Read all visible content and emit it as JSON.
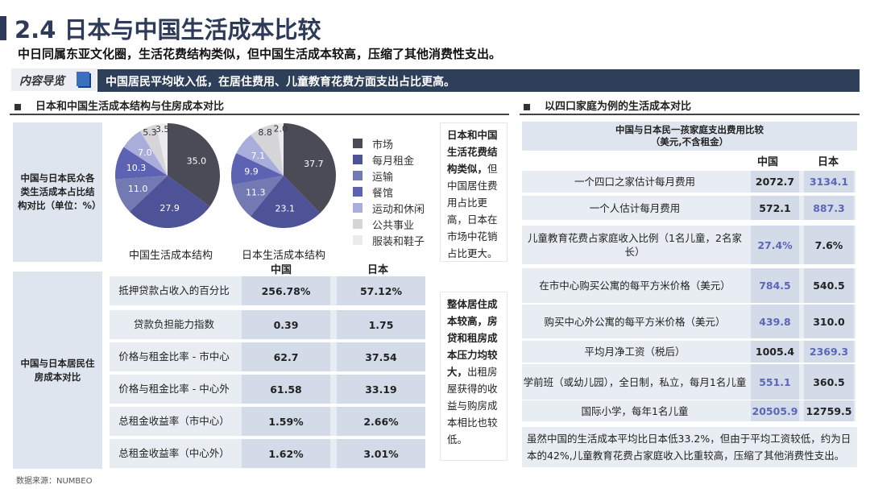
{
  "header": {
    "title": "2.4 日本与中国生活成本比较",
    "subtitle": "中日同属东亚文化圈，生活花费结构类似，但中国生活成本较高，压缩了其他消费性支出。",
    "guide_label": "内容导览",
    "banner": "中国居民平均收入低，在居住费用、儿童教育花费方面支出占比更高。"
  },
  "left": {
    "section_title": "日本和中国生活成本结构与住房成本对比",
    "box1": "中国与日本民众各类生活成本占比结构对比（单位：%）",
    "box2": "中国与日本居民住房成本对比",
    "col_china": "中国",
    "col_japan": "日本",
    "rows": [
      {
        "label": "抵押贷款占收入的百分比",
        "china": "256.78%",
        "japan": "57.12%"
      },
      {
        "label": "贷款负担能力指数",
        "china": "0.39",
        "japan": "1.75"
      },
      {
        "label": "价格与租金比率 - 市中心",
        "china": "62.7",
        "japan": "37.54"
      },
      {
        "label": "价格与租金比率 - 中心外",
        "china": "61.58",
        "japan": "33.19"
      },
      {
        "label": "总租金收益率（市中心）",
        "china": "1.59%",
        "japan": "2.66%"
      },
      {
        "label": "总租金收益率（中心外）",
        "china": "1.62%",
        "japan": "3.01%"
      }
    ],
    "note1_bold": "日本和中国生活花费结构类似，",
    "note1_rest": "但中国居住费用占比更高，日本在市场中花销占比更大。",
    "note2_bold": "整体居住成本较高，房贷和租房成本压力均较大，",
    "note2_rest": "出租房屋获得的收益与购房成本相比也较低。"
  },
  "chart_data": [
    {
      "type": "pie",
      "title": "中国生活成本结构",
      "categories": [
        "市场",
        "每月租金",
        "运输",
        "餐馆",
        "运动和休闲",
        "公共事业",
        "服装和鞋子"
      ],
      "values": [
        35.0,
        27.9,
        11.0,
        10.3,
        7.0,
        5.3,
        3.5
      ]
    },
    {
      "type": "pie",
      "title": "日本生活成本结构",
      "categories": [
        "市场",
        "每月租金",
        "运输",
        "餐馆",
        "运动和休闲",
        "公共事业",
        "服装和鞋子"
      ],
      "values": [
        37.7,
        23.1,
        11.3,
        9.9,
        7.1,
        8.8,
        2.0
      ]
    }
  ],
  "legend": [
    "市场",
    "每月租金",
    "运输",
    "餐馆",
    "运动和休闲",
    "公共事业",
    "服装和鞋子"
  ],
  "colors": [
    "#4a4b57",
    "#4e5398",
    "#7379b2",
    "#5d62b2",
    "#a9addb",
    "#d6d6d9",
    "#ebebee"
  ],
  "right": {
    "section_title": "以四口家庭为例的生活成本对比",
    "table_title": "中国与日本民一孩家庭支出费用比较",
    "table_subtitle": "（美元,不含租金）",
    "col_china": "中国",
    "col_japan": "日本",
    "rows": [
      {
        "label": "一个四口之家估计每月费用",
        "china": "2072.7",
        "japan": "3134.1",
        "higher": "japan"
      },
      {
        "label": "一个人估计每月费用",
        "china": "572.1",
        "japan": "887.3",
        "higher": "japan"
      },
      {
        "label": "儿童教育花费占家庭收入比例（1名儿童，2名家长）",
        "china": "27.4%",
        "japan": "7.6%",
        "higher": "china"
      },
      {
        "label": "在市中心购买公寓的每平方米价格（美元）",
        "china": "784.5",
        "japan": "540.5",
        "higher": "china"
      },
      {
        "label": "购买中心外公寓的每平方米价格（美元）",
        "china": "439.8",
        "japan": "310.0",
        "higher": "china"
      },
      {
        "label": "平均月净工资（税后）",
        "china": "1005.4",
        "japan": "2369.3",
        "higher": "japan"
      },
      {
        "label": "学前班（或幼儿园），全日制，私立，每月1名儿童",
        "china": "551.1",
        "japan": "360.5",
        "higher": "china"
      },
      {
        "label": "国际小学，每年1名儿童",
        "china": "20505.9",
        "japan": "12759.5",
        "higher": "china"
      }
    ],
    "note": "虽然中国的生活成本平均比日本低33.2%，但由于平均工资较低，约为日本的42%,儿童教育花费占家庭收入比重较高，压缩了其他消费性支出。"
  },
  "footer": {
    "source": "数据来源：NUMBEO"
  }
}
